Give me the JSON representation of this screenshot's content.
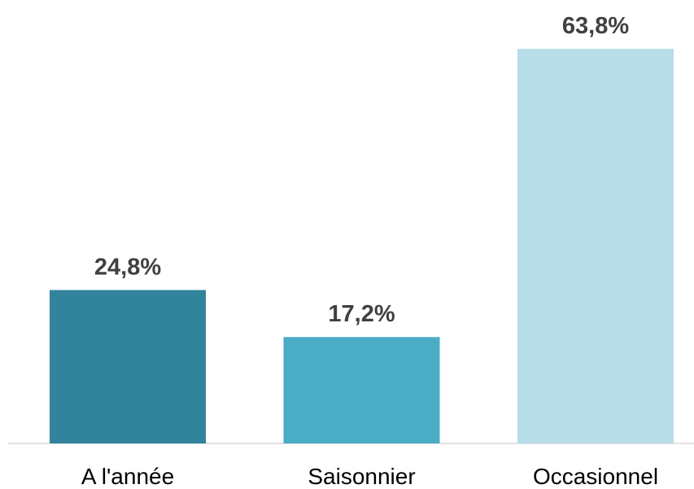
{
  "chart_data": {
    "type": "bar",
    "categories": [
      "A l'année",
      "Saisonnier",
      "Occasionnel"
    ],
    "values": [
      24.8,
      17.2,
      63.8
    ],
    "value_labels": [
      "24,8%",
      "17,2%",
      "63,8%"
    ],
    "colors": [
      "#31849b",
      "#4bacc6",
      "#b7dde8"
    ]
  }
}
